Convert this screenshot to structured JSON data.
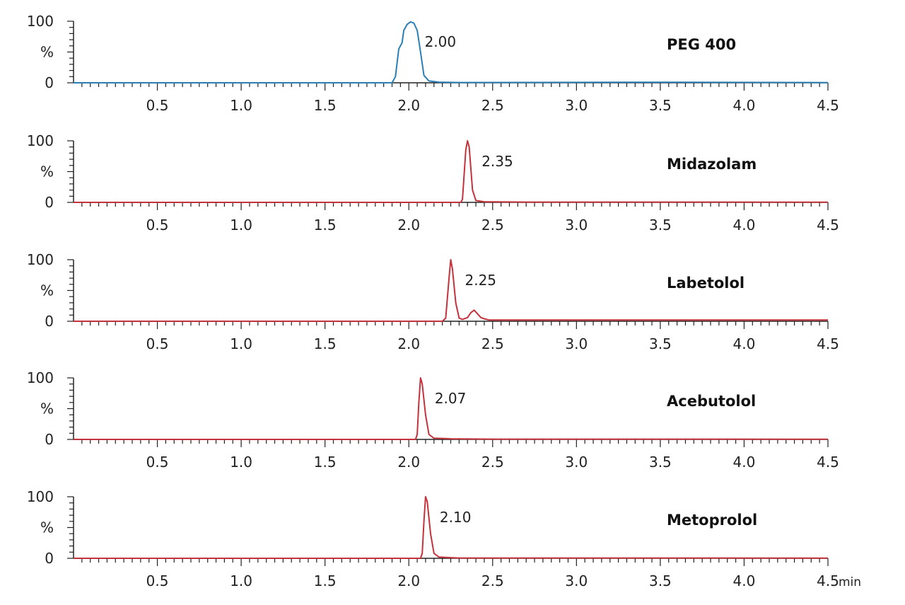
{
  "chart_data": [
    {
      "type": "line",
      "compound": "PEG 400",
      "peak_label": "2.00",
      "color": "#2a7fb4",
      "xlim": [
        0,
        4.5
      ],
      "ylim": [
        0,
        100
      ],
      "x_ticks": [
        "0.5",
        "1.0",
        "1.5",
        "2.0",
        "2.5",
        "3.0",
        "3.5",
        "4.0",
        "4.5"
      ],
      "y_ticks": [
        "100",
        "%",
        "0"
      ],
      "x_unit": "",
      "points": [
        [
          0,
          0
        ],
        [
          1.9,
          0
        ],
        [
          1.92,
          10
        ],
        [
          1.94,
          55
        ],
        [
          1.96,
          65
        ],
        [
          1.97,
          85
        ],
        [
          1.99,
          95
        ],
        [
          2.01,
          99
        ],
        [
          2.03,
          97
        ],
        [
          2.05,
          85
        ],
        [
          2.07,
          50
        ],
        [
          2.09,
          12
        ],
        [
          2.12,
          3
        ],
        [
          2.18,
          1
        ],
        [
          2.3,
          0.5
        ],
        [
          3.3,
          0.8
        ],
        [
          3.6,
          0.8
        ],
        [
          4.5,
          0.3
        ]
      ]
    },
    {
      "type": "line",
      "compound": "Midazolam",
      "peak_label": "2.35",
      "color": "#c4323c",
      "xlim": [
        0,
        4.5
      ],
      "ylim": [
        0,
        100
      ],
      "x_ticks": [
        "0.5",
        "1.0",
        "1.5",
        "2.0",
        "2.5",
        "3.0",
        "3.5",
        "4.0",
        "4.5"
      ],
      "y_ticks": [
        "100",
        "%",
        "0"
      ],
      "x_unit": "",
      "points": [
        [
          0,
          0
        ],
        [
          2.31,
          0
        ],
        [
          2.32,
          5
        ],
        [
          2.34,
          85
        ],
        [
          2.35,
          100
        ],
        [
          2.36,
          90
        ],
        [
          2.38,
          20
        ],
        [
          2.4,
          3
        ],
        [
          2.45,
          1
        ],
        [
          2.7,
          0.5
        ],
        [
          4.5,
          0.3
        ]
      ]
    },
    {
      "type": "line",
      "compound": "Labetolol",
      "peak_label": "2.25",
      "color": "#c4323c",
      "xlim": [
        0,
        4.5
      ],
      "ylim": [
        0,
        100
      ],
      "x_ticks": [
        "0.5",
        "1.0",
        "1.5",
        "2.0",
        "2.5",
        "3.0",
        "3.5",
        "4.0",
        "4.5"
      ],
      "y_ticks": [
        "100",
        "%",
        "0"
      ],
      "x_unit": "",
      "points": [
        [
          0,
          0
        ],
        [
          2.2,
          0
        ],
        [
          2.22,
          5
        ],
        [
          2.24,
          70
        ],
        [
          2.25,
          100
        ],
        [
          2.26,
          85
        ],
        [
          2.28,
          30
        ],
        [
          2.3,
          5
        ],
        [
          2.32,
          3
        ],
        [
          2.35,
          6
        ],
        [
          2.37,
          14
        ],
        [
          2.39,
          18
        ],
        [
          2.41,
          12
        ],
        [
          2.43,
          6
        ],
        [
          2.45,
          4
        ],
        [
          2.48,
          2
        ],
        [
          2.55,
          2
        ],
        [
          3.0,
          2
        ],
        [
          4.5,
          2
        ]
      ]
    },
    {
      "type": "line",
      "compound": "Acebutolol",
      "peak_label": "2.07",
      "color": "#c4323c",
      "xlim": [
        0,
        4.5
      ],
      "ylim": [
        0,
        100
      ],
      "x_ticks": [
        "0.5",
        "1.0",
        "1.5",
        "2.0",
        "2.5",
        "3.0",
        "3.5",
        "4.0",
        "4.5"
      ],
      "y_ticks": [
        "100",
        "%",
        "0"
      ],
      "x_unit": "",
      "points": [
        [
          0,
          0
        ],
        [
          2.04,
          0
        ],
        [
          2.05,
          8
        ],
        [
          2.06,
          60
        ],
        [
          2.07,
          100
        ],
        [
          2.08,
          90
        ],
        [
          2.1,
          40
        ],
        [
          2.12,
          8
        ],
        [
          2.15,
          2
        ],
        [
          2.25,
          1
        ],
        [
          2.5,
          0.5
        ],
        [
          4.5,
          0.3
        ]
      ]
    },
    {
      "type": "line",
      "compound": "Metoprolol",
      "peak_label": "2.10",
      "color": "#c4323c",
      "xlim": [
        0,
        4.5
      ],
      "ylim": [
        0,
        100
      ],
      "x_ticks": [
        "0.5",
        "1.0",
        "1.5",
        "2.0",
        "2.5",
        "3.0",
        "3.5",
        "4.0",
        "4.5"
      ],
      "y_ticks": [
        "100",
        "%",
        "0"
      ],
      "x_unit": "min",
      "points": [
        [
          0,
          0
        ],
        [
          2.07,
          0
        ],
        [
          2.08,
          8
        ],
        [
          2.09,
          60
        ],
        [
          2.1,
          100
        ],
        [
          2.11,
          92
        ],
        [
          2.13,
          40
        ],
        [
          2.15,
          8
        ],
        [
          2.18,
          2
        ],
        [
          2.3,
          0.5
        ],
        [
          4.5,
          0.3
        ]
      ]
    }
  ]
}
